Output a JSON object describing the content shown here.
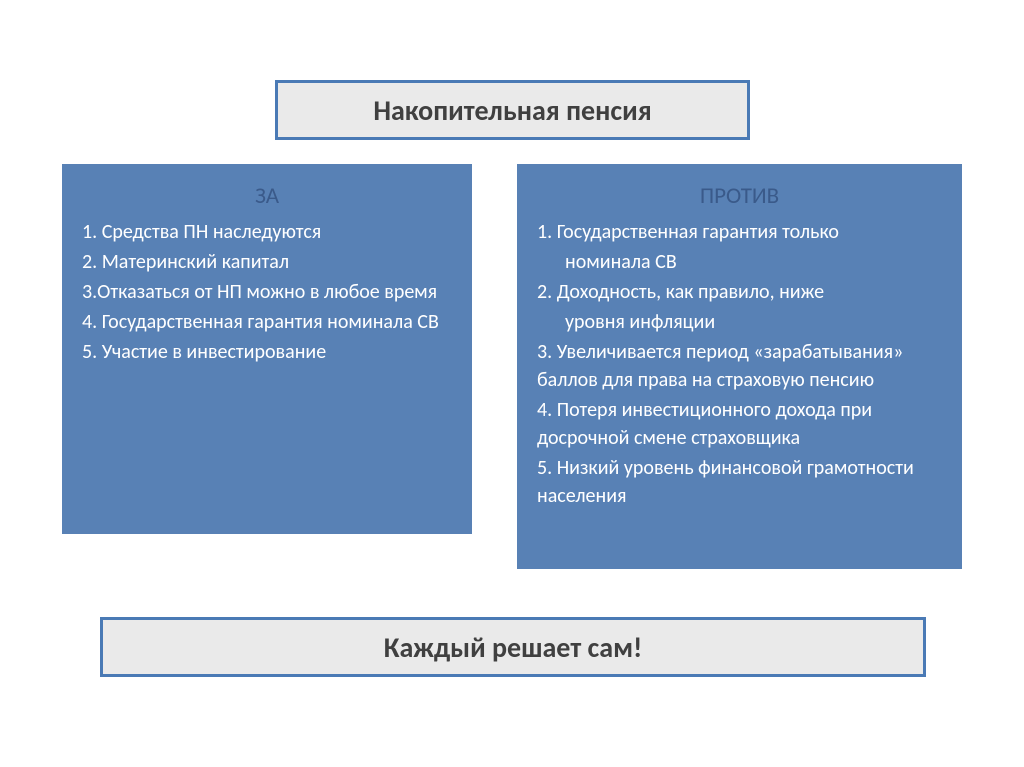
{
  "title": "Накопительная пенсия",
  "left_column": {
    "heading": "ЗА",
    "items": [
      "1. Средства ПН наследуются",
      "2. Материнский капитал",
      "3.Отказаться от НП можно в любое время",
      "4. Государственная гарантия номинала СВ",
      "5. Участие в инвестирование"
    ]
  },
  "right_column": {
    "heading": "ПРОТИВ",
    "items": [
      {
        "text": "1. Государственная гарантия только",
        "indent": false
      },
      {
        "text": "номинала СВ",
        "indent": true
      },
      {
        "text": "2. Доходность, как правило, ниже",
        "indent": false
      },
      {
        "text": "уровня инфляции",
        "indent": true
      },
      {
        "text": "3. Увеличивается период «зарабатывания» баллов  для права на страховую пенсию",
        "indent": false
      },
      {
        "text": "4. Потеря инвестиционного дохода при досрочной смене страховщика",
        "indent": false
      },
      {
        "text": "5. Низкий уровень финансовой грамотности населения",
        "indent": false
      }
    ]
  },
  "bottom": "Каждый решает сам!",
  "styling": {
    "background_color": "#ffffff",
    "box_bg_color": "#eaeaea",
    "box_border_color": "#4a7ab5",
    "box_border_width": 3,
    "column_bg_color": "#5881b5",
    "title_font_color": "#404040",
    "title_font_size": 28,
    "heading_font_color": "#3a5a8a",
    "heading_font_size": 23,
    "item_font_color": "#ffffff",
    "item_font_size": 20,
    "bottom_font_color": "#404040",
    "bottom_font_size": 28
  }
}
